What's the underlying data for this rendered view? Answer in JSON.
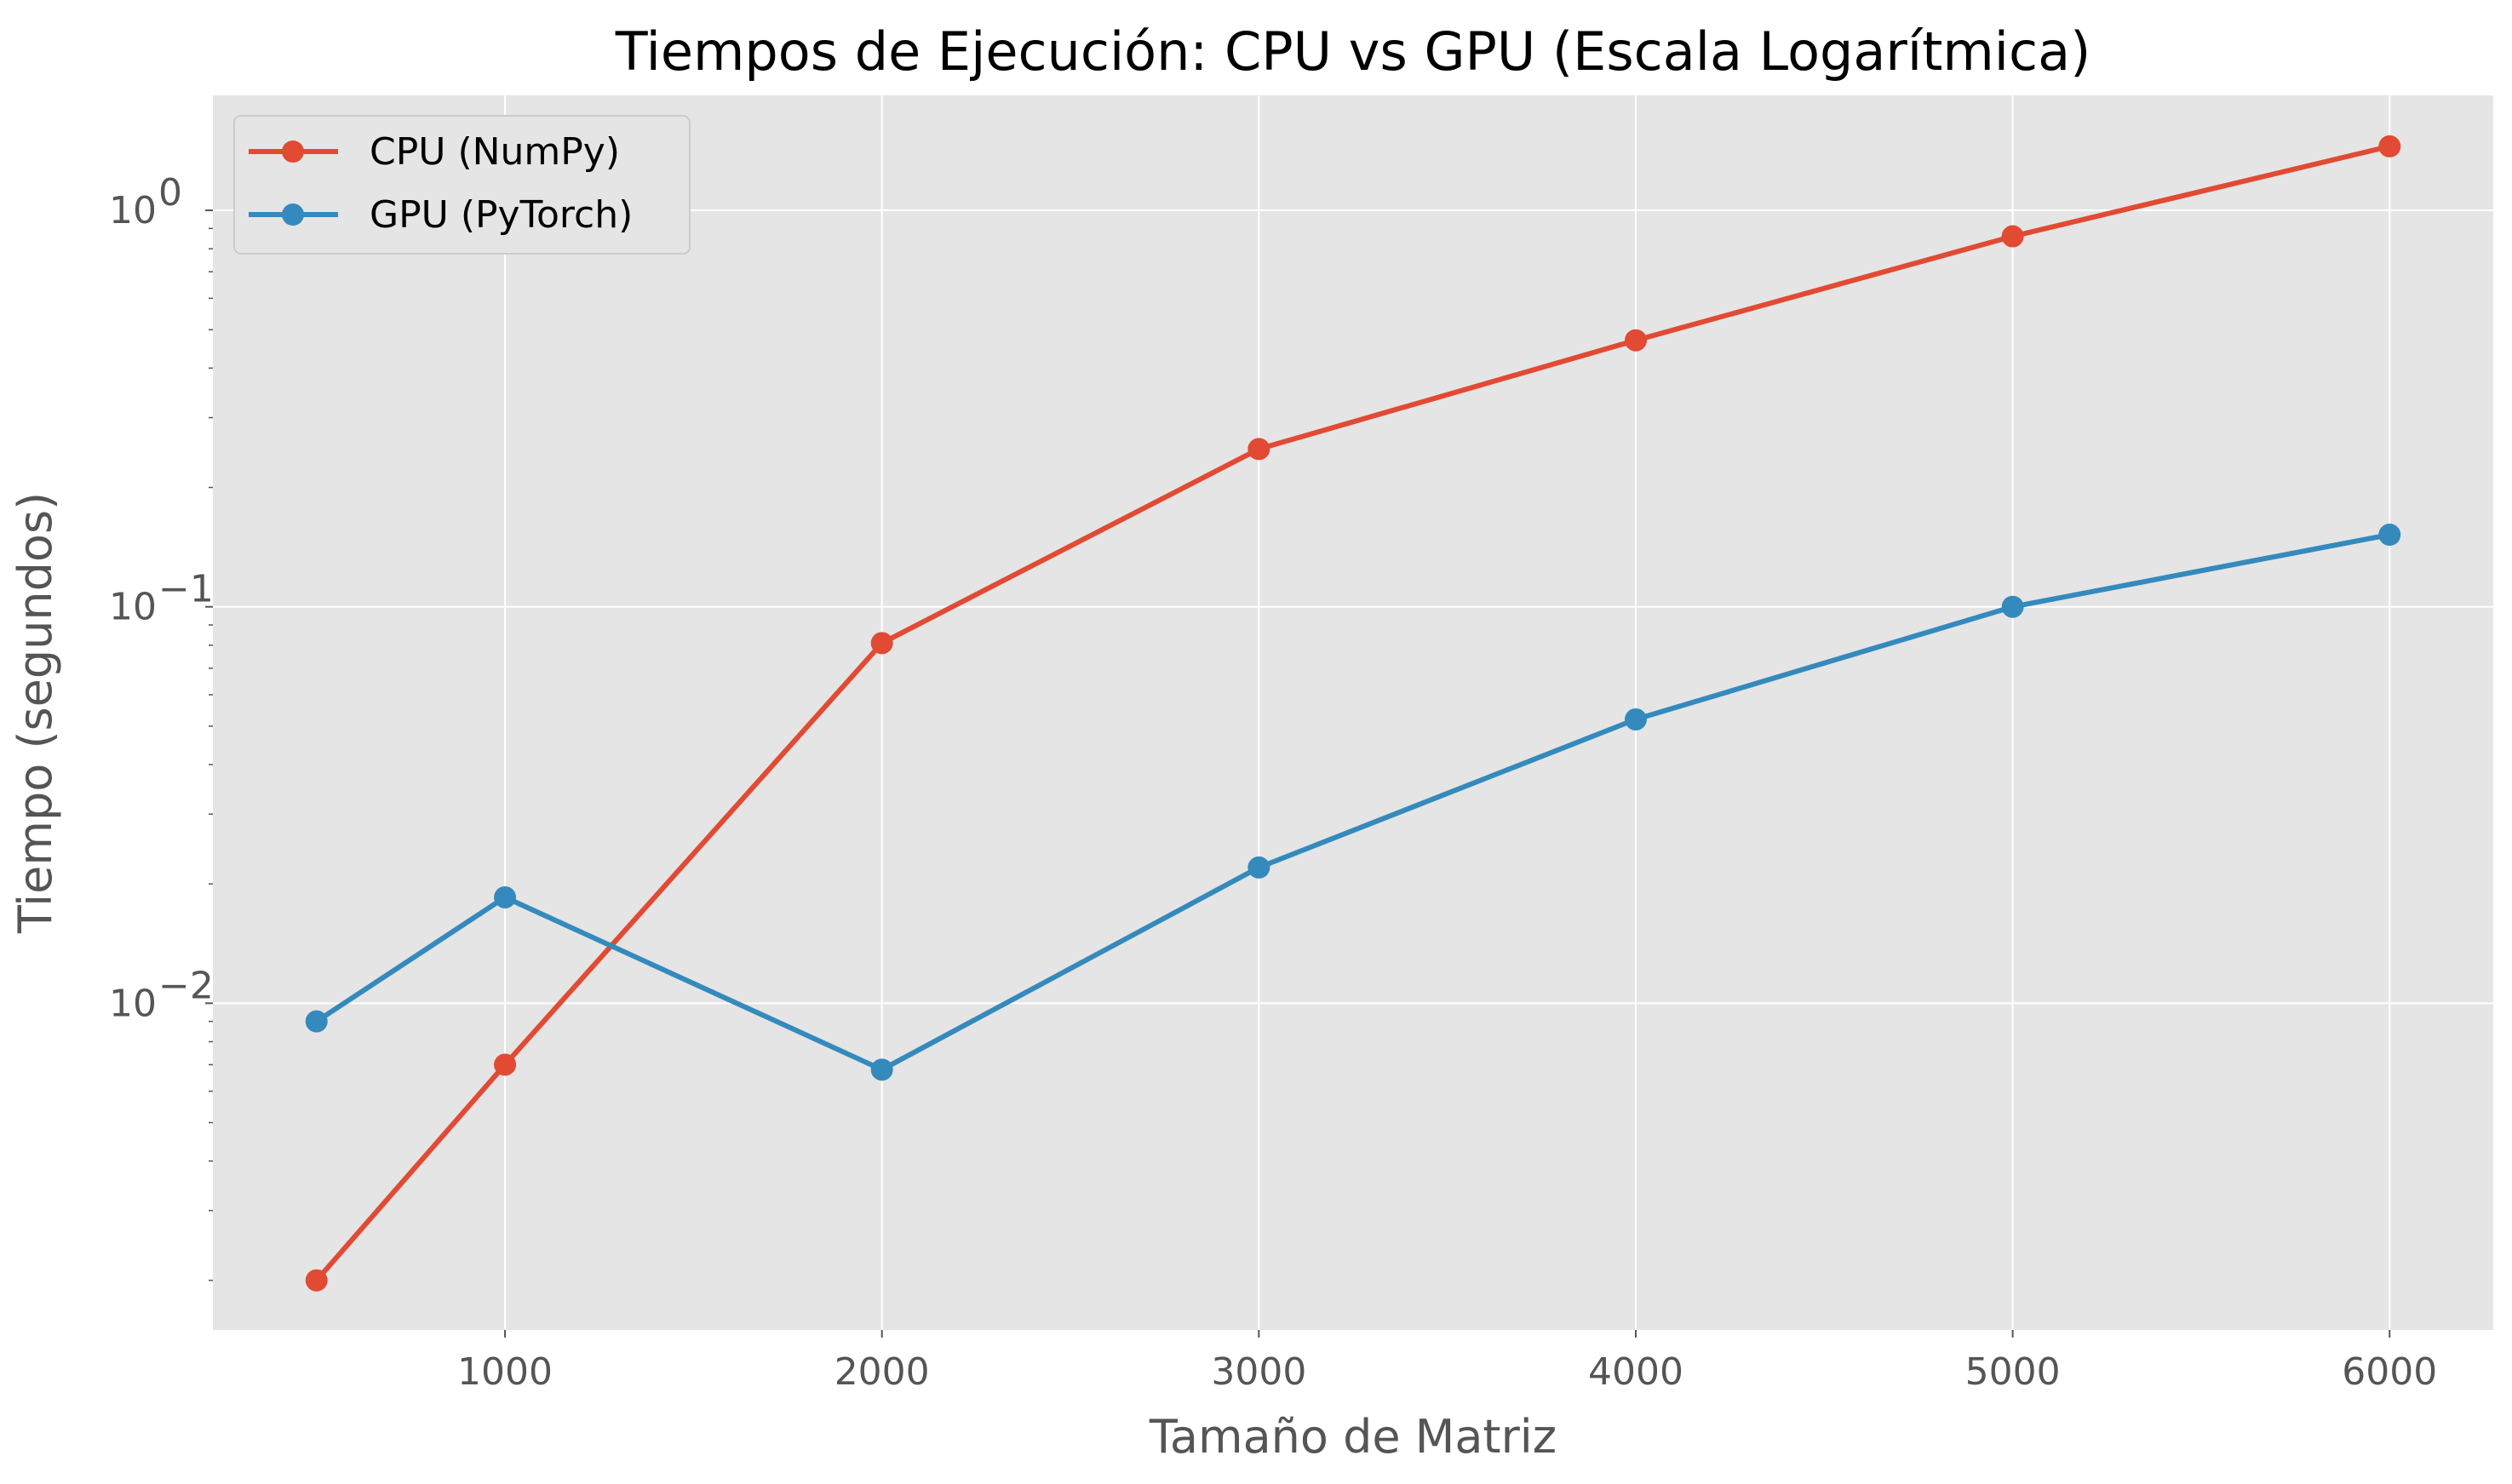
{
  "chart_data": {
    "type": "line",
    "title": "Tiempos de Ejecución: CPU vs GPU (Escala Logarítmica)",
    "xlabel": "Tamaño de Matriz",
    "ylabel": "Tiempo (segundos)",
    "x_scale": "linear",
    "y_scale": "log",
    "xlim": [
      225,
      6275
    ],
    "ylim": [
      0.0015,
      1.95
    ],
    "x_ticks": [
      1000,
      2000,
      3000,
      4000,
      5000,
      6000
    ],
    "x_tick_labels": [
      "1000",
      "2000",
      "3000",
      "4000",
      "5000",
      "6000"
    ],
    "y_ticks": [
      0.01,
      0.1,
      1
    ],
    "y_tick_labels": [
      {
        "base": "10",
        "exp": "−2"
      },
      {
        "base": "10",
        "exp": "−1"
      },
      {
        "base": "10",
        "exp": "0"
      }
    ],
    "grid": true,
    "legend_position": "top-left",
    "x": [
      500,
      1000,
      2000,
      3000,
      4000,
      5000,
      6000
    ],
    "series": [
      {
        "name": "CPU (NumPy)",
        "color": "#E24A33",
        "values": [
          0.002,
          0.007,
          0.081,
          0.25,
          0.47,
          0.86,
          1.45
        ]
      },
      {
        "name": "GPU (PyTorch)",
        "color": "#348ABD",
        "values": [
          0.009,
          0.0185,
          0.0068,
          0.022,
          0.052,
          0.1,
          0.152
        ]
      }
    ]
  }
}
